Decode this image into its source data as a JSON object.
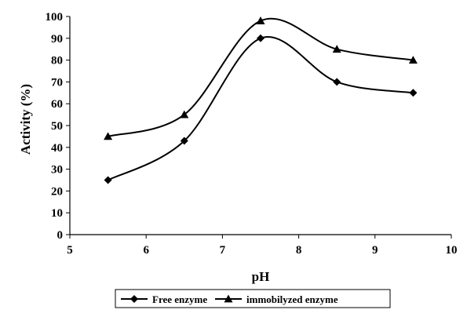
{
  "chart_data": {
    "type": "line",
    "title": "",
    "xlabel": "pH",
    "ylabel": "Activity (%)",
    "xlim": [
      5,
      10
    ],
    "ylim": [
      0,
      100
    ],
    "xticks": [
      5,
      6,
      7,
      8,
      9,
      10
    ],
    "yticks": [
      0,
      10,
      20,
      30,
      40,
      50,
      60,
      70,
      80,
      90,
      100
    ],
    "grid": false,
    "smooth": true,
    "legend_position": "bottom",
    "series": [
      {
        "name": "Free enzyme",
        "marker": "diamond",
        "color": "#000000",
        "x": [
          5.5,
          6.5,
          7.5,
          8.5,
          9.5
        ],
        "y": [
          25,
          43,
          90,
          70,
          65
        ]
      },
      {
        "name": "immobilyzed enzyme",
        "marker": "triangle",
        "color": "#000000",
        "x": [
          5.5,
          6.5,
          7.5,
          8.5,
          9.5
        ],
        "y": [
          45,
          55,
          98,
          85,
          80
        ]
      }
    ]
  }
}
